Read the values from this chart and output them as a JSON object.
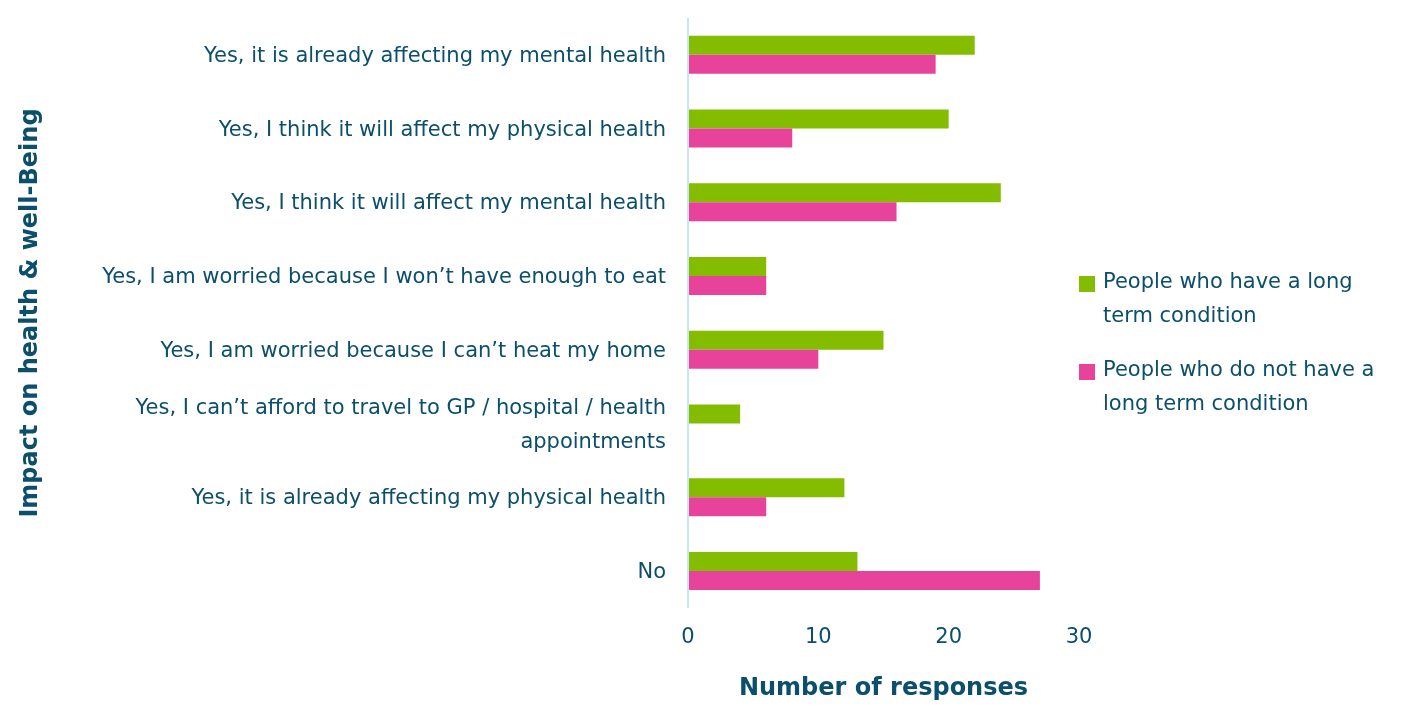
{
  "chart_data": {
    "type": "bar",
    "orientation": "horizontal",
    "xlabel": "Number of responses",
    "ylabel": "Impact on health & well-Being",
    "categories": [
      "Yes, it is already affecting my mental health",
      "Yes, I think it will affect my physical health",
      "Yes, I think it will affect my mental health",
      "Yes, I am worried because I won’t have enough to eat",
      "Yes, I am worried because I can’t heat my home",
      "Yes, I can’t afford to travel to GP / hospital / health appointments",
      "Yes, it is already affecting my physical health",
      "No"
    ],
    "series": [
      {
        "name": "People who have a long term condition",
        "color": "#84bd00",
        "values": [
          22,
          20,
          24,
          6,
          15,
          4,
          12,
          13
        ]
      },
      {
        "name": "People who do not have a long term condition",
        "color": "#e8439a",
        "values": [
          19,
          8,
          16,
          6,
          10,
          0,
          6,
          27
        ]
      }
    ],
    "xlim": [
      0,
      30
    ],
    "xticks": [
      0,
      10,
      20,
      30
    ],
    "legend": "right"
  }
}
